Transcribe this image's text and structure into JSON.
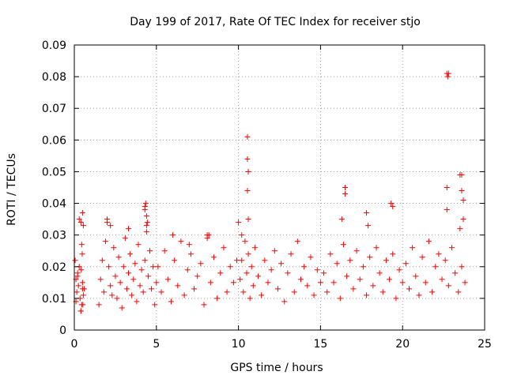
{
  "chart_data": {
    "type": "scatter",
    "title": "Day 199 of 2017, Rate Of TEC Index for receiver stjo",
    "xlabel": "GPS time / hours",
    "ylabel": "ROTI / TECUs",
    "xlim": [
      0,
      25
    ],
    "ylim": [
      0,
      0.09
    ],
    "xticks": [
      0,
      5,
      10,
      15,
      20,
      25
    ],
    "xtick_labels": [
      "0",
      "5",
      "10",
      "15",
      "20",
      "25"
    ],
    "yticks": [
      0,
      0.01,
      0.02,
      0.03,
      0.04,
      0.05,
      0.06,
      0.07,
      0.08,
      0.09
    ],
    "ytick_labels": [
      "0",
      "0.01",
      "0.02",
      "0.03",
      "0.04",
      "0.05",
      "0.06",
      "0.07",
      "0.08",
      "0.09"
    ],
    "grid": true,
    "marker": "+",
    "color": "#ff0000",
    "series": [
      {
        "x": [
          0.05,
          0.1,
          0.15,
          0.2,
          0.25,
          0.3,
          0.35,
          0.4,
          0.45,
          0.5,
          0.55,
          0.6,
          0.1,
          0.2,
          0.3,
          0.4,
          0.5,
          0.55,
          0.45,
          0.4,
          0.42,
          0.48,
          0.5,
          0.52,
          1.5,
          1.6,
          1.7,
          1.8,
          1.9,
          2.0,
          2.1,
          2.2,
          2.3,
          2.4,
          2.5,
          2.6,
          2.7,
          2.8,
          2.9,
          3.0,
          3.1,
          3.2,
          3.3,
          3.4,
          3.5,
          3.6,
          3.7,
          3.8,
          3.9,
          4.0,
          4.1,
          4.2,
          4.3,
          4.4,
          4.5,
          4.6,
          4.7,
          4.8,
          4.9,
          5.0,
          4.3,
          4.35,
          4.4,
          4.45,
          4.3,
          4.4,
          2.0,
          2.2,
          3.3,
          5.1,
          5.3,
          5.5,
          5.7,
          5.9,
          6.1,
          6.3,
          6.5,
          6.7,
          6.9,
          7.1,
          7.3,
          7.5,
          7.7,
          7.9,
          8.1,
          8.3,
          8.5,
          8.7,
          8.9,
          9.1,
          9.3,
          9.5,
          9.7,
          9.9,
          8.1,
          8.2,
          6.0,
          7.0,
          10.1,
          10.2,
          10.3,
          10.4,
          10.5,
          10.6,
          10.7,
          10.8,
          10.9,
          11.0,
          11.2,
          11.4,
          11.6,
          11.8,
          12.0,
          12.2,
          12.4,
          12.6,
          12.8,
          13.0,
          13.2,
          13.4,
          13.6,
          13.8,
          14.0,
          14.2,
          14.4,
          14.6,
          14.8,
          15.0,
          10.55,
          10.55,
          10.6,
          10.55,
          10.6,
          10.0,
          10.2,
          15.2,
          15.4,
          15.6,
          15.8,
          16.0,
          16.2,
          16.4,
          16.6,
          16.8,
          17.0,
          17.2,
          17.4,
          17.6,
          17.8,
          18.0,
          18.2,
          18.4,
          18.6,
          18.8,
          19.0,
          19.2,
          19.4,
          19.6,
          19.8,
          20.0,
          16.3,
          16.5,
          16.5,
          17.8,
          17.9,
          19.3,
          19.4,
          20.2,
          20.4,
          20.6,
          20.8,
          21.0,
          21.2,
          21.4,
          21.6,
          21.8,
          22.0,
          22.2,
          22.4,
          22.6,
          22.8,
          23.0,
          23.2,
          23.4,
          23.6,
          23.8,
          22.7,
          22.75,
          22.8,
          22.7,
          22.7,
          23.5,
          23.6,
          23.7,
          23.6,
          23.5,
          23.7
        ],
        "y": [
          0.022,
          0.016,
          0.012,
          0.018,
          0.014,
          0.02,
          0.01,
          0.006,
          0.008,
          0.015,
          0.011,
          0.013,
          0.009,
          0.017,
          0.035,
          0.034,
          0.037,
          0.033,
          0.027,
          0.006,
          0.019,
          0.024,
          0.013,
          0.008,
          0.008,
          0.016,
          0.022,
          0.012,
          0.028,
          0.034,
          0.02,
          0.014,
          0.011,
          0.026,
          0.017,
          0.01,
          0.023,
          0.015,
          0.007,
          0.02,
          0.029,
          0.013,
          0.018,
          0.024,
          0.011,
          0.016,
          0.021,
          0.009,
          0.027,
          0.014,
          0.019,
          0.012,
          0.022,
          0.031,
          0.017,
          0.025,
          0.013,
          0.02,
          0.008,
          0.015,
          0.038,
          0.04,
          0.036,
          0.034,
          0.039,
          0.033,
          0.035,
          0.033,
          0.032,
          0.02,
          0.012,
          0.025,
          0.016,
          0.009,
          0.022,
          0.014,
          0.028,
          0.011,
          0.019,
          0.024,
          0.013,
          0.017,
          0.021,
          0.008,
          0.03,
          0.015,
          0.023,
          0.01,
          0.018,
          0.026,
          0.012,
          0.02,
          0.015,
          0.022,
          0.029,
          0.03,
          0.03,
          0.027,
          0.016,
          0.022,
          0.012,
          0.028,
          0.018,
          0.024,
          0.01,
          0.02,
          0.014,
          0.026,
          0.017,
          0.011,
          0.022,
          0.015,
          0.019,
          0.025,
          0.013,
          0.021,
          0.009,
          0.018,
          0.024,
          0.012,
          0.028,
          0.016,
          0.02,
          0.014,
          0.023,
          0.011,
          0.019,
          0.015,
          0.061,
          0.054,
          0.05,
          0.044,
          0.035,
          0.034,
          0.03,
          0.018,
          0.012,
          0.024,
          0.015,
          0.021,
          0.01,
          0.027,
          0.017,
          0.022,
          0.013,
          0.025,
          0.016,
          0.02,
          0.011,
          0.023,
          0.014,
          0.026,
          0.018,
          0.012,
          0.022,
          0.016,
          0.024,
          0.01,
          0.019,
          0.015,
          0.035,
          0.045,
          0.043,
          0.037,
          0.033,
          0.04,
          0.039,
          0.021,
          0.013,
          0.026,
          0.017,
          0.011,
          0.023,
          0.015,
          0.028,
          0.012,
          0.02,
          0.024,
          0.016,
          0.022,
          0.014,
          0.026,
          0.018,
          0.012,
          0.02,
          0.015,
          0.081,
          0.08,
          0.081,
          0.045,
          0.038,
          0.049,
          0.049,
          0.041,
          0.044,
          0.032,
          0.035
        ]
      }
    ]
  }
}
